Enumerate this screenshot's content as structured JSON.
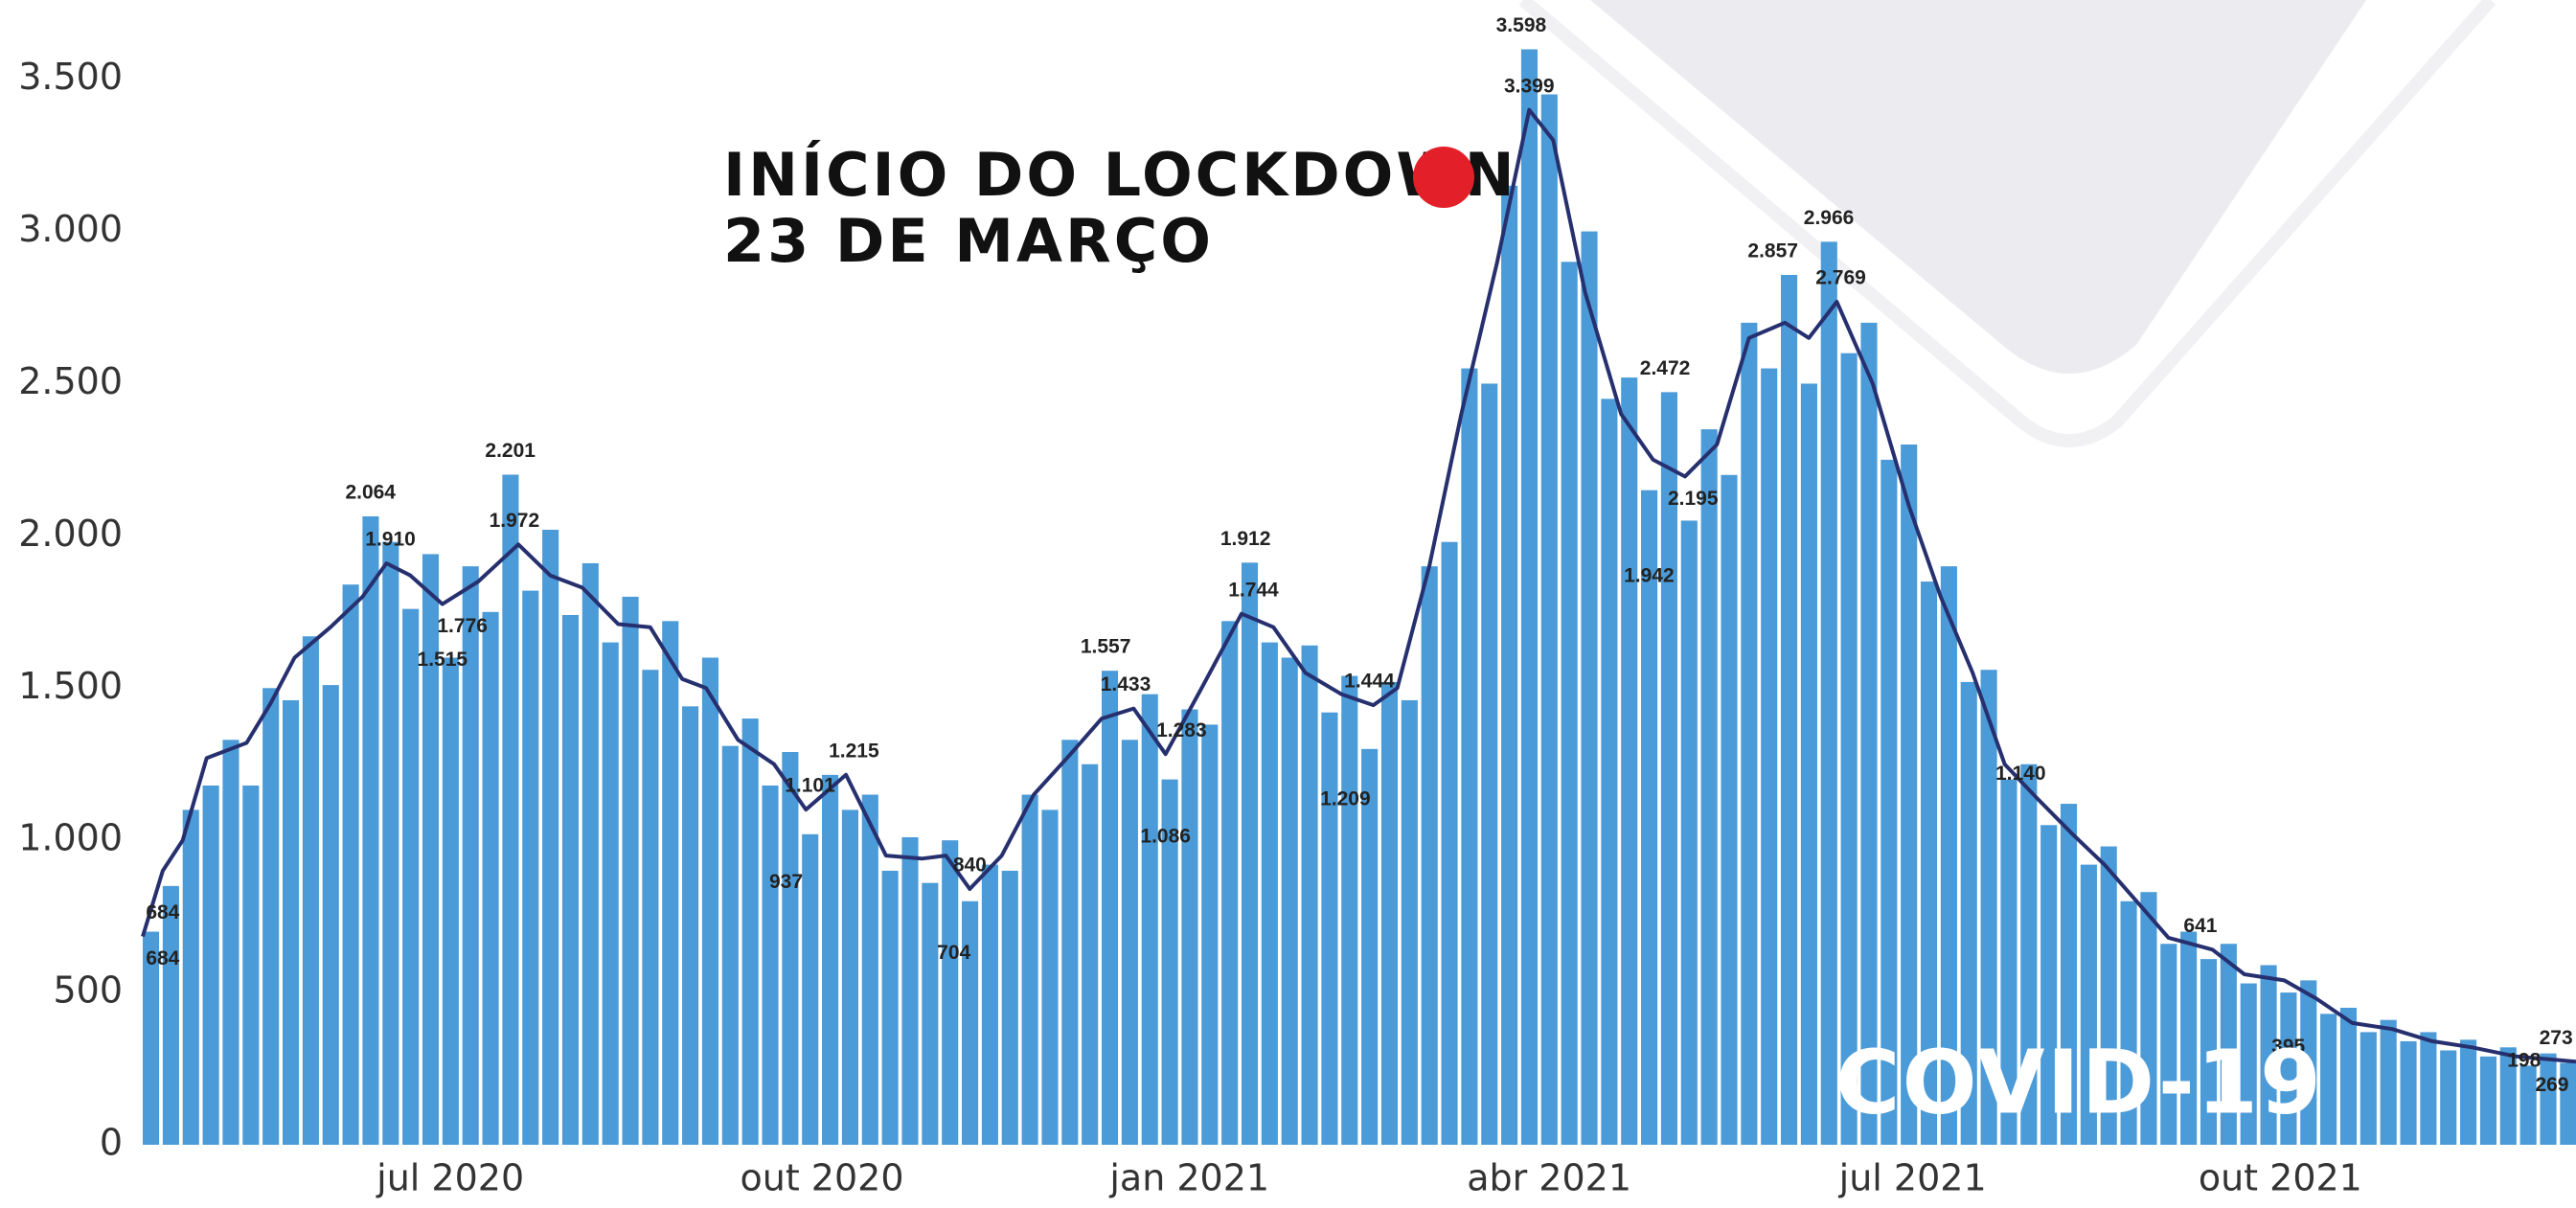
{
  "chart_data": {
    "type": "bar",
    "title_lines": [
      "INÍCIO DO LOCKDOWN",
      "23 DE MARÇO"
    ],
    "badge": "COVID-19",
    "xlim": [
      0,
      609
    ],
    "xticks": [
      {
        "value": 77,
        "label": "jul 2020"
      },
      {
        "value": 170,
        "label": "out 2020"
      },
      {
        "value": 262,
        "label": "jan 2021"
      },
      {
        "value": 352,
        "label": "abr 2021"
      },
      {
        "value": 443,
        "label": "jul 2021"
      },
      {
        "value": 535,
        "label": "out 2021"
      }
    ],
    "ylim": [
      0,
      3760
    ],
    "yticks": [
      0,
      500,
      {
        "value": 1000,
        "label": "1.000"
      },
      {
        "value": 1500,
        "label": "1.500"
      },
      {
        "value": 2000,
        "label": "2.000"
      },
      {
        "value": 2500,
        "label": "2.500"
      },
      {
        "value": 3000,
        "label": "3.000"
      },
      {
        "value": 3500,
        "label": "3.500"
      }
    ],
    "grid": false,
    "series": [
      {
        "type": "bar",
        "color": "#4b9bd8",
        "x": [
          0,
          5,
          10,
          15,
          20,
          25,
          30,
          35,
          40,
          45,
          50,
          55,
          60,
          65,
          70,
          75,
          80,
          85,
          90,
          95,
          100,
          105,
          110,
          115,
          120,
          125,
          130,
          135,
          140,
          145,
          150,
          155,
          160,
          165,
          170,
          175,
          180,
          185,
          190,
          195,
          200,
          205,
          210,
          215,
          220,
          225,
          230,
          235,
          240,
          245,
          250,
          255,
          260,
          265,
          270,
          275,
          280,
          285,
          290,
          295,
          300,
          305,
          310,
          315,
          320,
          325,
          330,
          335,
          340,
          345,
          350,
          355,
          360,
          365,
          370,
          375,
          380,
          385,
          390,
          395,
          400,
          405,
          410,
          415,
          420,
          425,
          430,
          435,
          440,
          445,
          450,
          455,
          460,
          465,
          470,
          475,
          480,
          485,
          490,
          495,
          500,
          505,
          510,
          515,
          520,
          525,
          530,
          535,
          540,
          545,
          550,
          555,
          560,
          565,
          570,
          575,
          580,
          585,
          590,
          595,
          600,
          605
        ],
        "values": [
          700,
          850,
          1100,
          1180,
          1330,
          1180,
          1500,
          1460,
          1670,
          1510,
          1840,
          2064,
          1980,
          1760,
          1940,
          1600,
          1900,
          1750,
          2201,
          1820,
          2020,
          1740,
          1910,
          1650,
          1800,
          1560,
          1720,
          1440,
          1600,
          1310,
          1400,
          1180,
          1290,
          1020,
          1215,
          1100,
          1150,
          900,
          1010,
          860,
          1000,
          800,
          920,
          900,
          1150,
          1100,
          1330,
          1250,
          1557,
          1330,
          1480,
          1200,
          1430,
          1380,
          1720,
          1912,
          1650,
          1600,
          1640,
          1420,
          1540,
          1300,
          1520,
          1460,
          1900,
          1980,
          2550,
          2500,
          3150,
          3598,
          3450,
          2900,
          3000,
          2450,
          2520,
          2150,
          2472,
          2050,
          2350,
          2200,
          2700,
          2550,
          2857,
          2500,
          2966,
          2600,
          2700,
          2250,
          2300,
          1850,
          1900,
          1520,
          1560,
          1200,
          1250,
          1050,
          1120,
          920,
          980,
          800,
          830,
          660,
          700,
          610,
          660,
          530,
          590,
          500,
          540,
          430,
          450,
          370,
          410,
          340,
          370,
          310,
          345,
          290,
          320,
          260,
          300,
          269
        ]
      },
      {
        "type": "line",
        "color": "#27306f",
        "x": [
          0,
          5,
          10,
          16,
          26,
          32,
          38,
          47,
          55,
          61,
          67,
          75,
          84,
          94,
          102,
          110,
          119,
          127,
          135,
          141,
          149,
          158,
          166,
          176,
          186,
          195,
          201,
          207,
          215,
          223,
          232,
          240,
          248,
          256,
          265,
          275,
          283,
          291,
          300,
          308,
          314,
          322,
          330,
          339,
          347,
          353,
          361,
          370,
          378,
          386,
          394,
          402,
          411,
          417,
          424,
          433,
          442,
          450,
          458,
          466,
          474,
          483,
          491,
          499,
          507,
          518,
          526,
          536,
          544,
          553,
          563,
          573,
          583,
          594,
          609
        ],
        "values": [
          684,
          900,
          1000,
          1270,
          1320,
          1450,
          1600,
          1700,
          1800,
          1910,
          1870,
          1776,
          1850,
          1972,
          1870,
          1830,
          1710,
          1700,
          1530,
          1500,
          1330,
          1250,
          1101,
          1215,
          950,
          940,
          950,
          840,
          950,
          1150,
          1280,
          1400,
          1433,
          1283,
          1500,
          1744,
          1700,
          1550,
          1480,
          1444,
          1500,
          1900,
          2400,
          2900,
          3399,
          3300,
          2800,
          2400,
          2250,
          2195,
          2300,
          2650,
          2700,
          2650,
          2769,
          2500,
          2100,
          1800,
          1550,
          1250,
          1140,
          1020,
          920,
          800,
          680,
          641,
          560,
          540,
          480,
          400,
          380,
          340,
          320,
          290,
          273
        ]
      }
    ],
    "annotations": [
      {
        "label": "3.598",
        "x": 345,
        "value": 3598,
        "position": "above"
      },
      {
        "label": "3.399",
        "x": 347,
        "value": 3399,
        "position": "above"
      },
      {
        "label": "2.966",
        "x": 422,
        "value": 2966,
        "position": "above"
      },
      {
        "label": "2.857",
        "x": 408,
        "value": 2857,
        "position": "above"
      },
      {
        "label": "2.769",
        "x": 425,
        "value": 2769,
        "position": "above"
      },
      {
        "label": "2.472",
        "x": 381,
        "value": 2472,
        "position": "above"
      },
      {
        "label": "2.195",
        "x": 388,
        "value": 2195,
        "position": "below"
      },
      {
        "label": "1.942",
        "x": 377,
        "value": 1942,
        "position": "below"
      },
      {
        "label": "2.201",
        "x": 92,
        "value": 2201,
        "position": "above"
      },
      {
        "label": "2.064",
        "x": 57,
        "value": 2064,
        "position": "above"
      },
      {
        "label": "1.910",
        "x": 62,
        "value": 1910,
        "position": "above"
      },
      {
        "label": "1.972",
        "x": 93,
        "value": 1972,
        "position": "above"
      },
      {
        "label": "1.776",
        "x": 80,
        "value": 1776,
        "position": "below"
      },
      {
        "label": "1.515",
        "x": 75,
        "value": 1515,
        "position": "above"
      },
      {
        "label": "1.912",
        "x": 276,
        "value": 1912,
        "position": "above"
      },
      {
        "label": "1.744",
        "x": 278,
        "value": 1744,
        "position": "above"
      },
      {
        "label": "1.557",
        "x": 241,
        "value": 1557,
        "position": "above"
      },
      {
        "label": "1.433",
        "x": 246,
        "value": 1433,
        "position": "above"
      },
      {
        "label": "1.283",
        "x": 260,
        "value": 1283,
        "position": "above"
      },
      {
        "label": "1.086",
        "x": 256,
        "value": 1086,
        "position": "below"
      },
      {
        "label": "1.209",
        "x": 301,
        "value": 1209,
        "position": "below"
      },
      {
        "label": "1.444",
        "x": 307,
        "value": 1444,
        "position": "above"
      },
      {
        "label": "1.215",
        "x": 178,
        "value": 1215,
        "position": "above"
      },
      {
        "label": "1.101",
        "x": 167,
        "value": 1101,
        "position": "above"
      },
      {
        "label": "937",
        "x": 161,
        "value": 937,
        "position": "below"
      },
      {
        "label": "840",
        "x": 207,
        "value": 840,
        "position": "above"
      },
      {
        "label": "704",
        "x": 203,
        "value": 704,
        "position": "below"
      },
      {
        "label": "1.140",
        "x": 470,
        "value": 1140,
        "position": "above"
      },
      {
        "label": "641",
        "x": 515,
        "value": 641,
        "position": "above"
      },
      {
        "label": "395",
        "x": 537,
        "value": 395,
        "position": "below"
      },
      {
        "label": "273",
        "x": 604,
        "value": 273,
        "position": "above"
      },
      {
        "label": "198",
        "x": 596,
        "value": 198,
        "position": "above"
      },
      {
        "label": "269",
        "x": 603,
        "value": 269,
        "position": "below"
      },
      {
        "label": "684",
        "x": 5,
        "value": 684,
        "position": "above"
      },
      {
        "label": "684",
        "x": 5,
        "value": 684,
        "position": "below"
      }
    ]
  }
}
